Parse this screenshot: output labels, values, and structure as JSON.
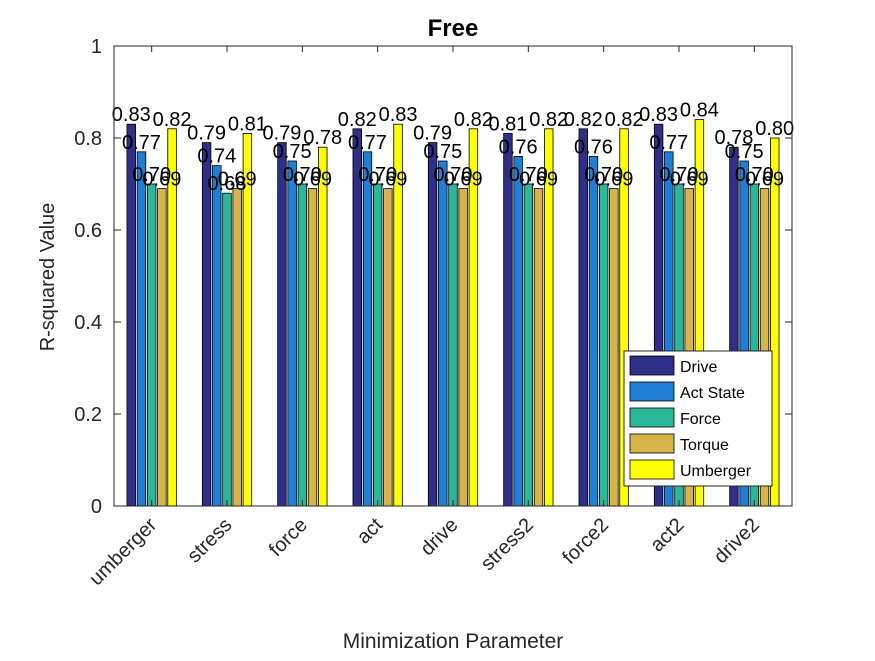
{
  "chart_data": {
    "type": "bar",
    "title": "Free",
    "xlabel": "Minimization Parameter",
    "ylabel": "R-squared Value",
    "ylim": [
      0,
      1
    ],
    "yticks": [
      0,
      0.2,
      0.4,
      0.6,
      0.8,
      1
    ],
    "ytick_labels": [
      "0",
      "0.2",
      "0.4",
      "0.6",
      "0.8",
      "1"
    ],
    "categories": [
      "umberger",
      "stress",
      "force",
      "act",
      "drive",
      "stress2",
      "force2",
      "act2",
      "drive2"
    ],
    "series": [
      {
        "name": "Drive",
        "color": "#2f2f8a",
        "values": [
          0.83,
          0.79,
          0.79,
          0.82,
          0.79,
          0.81,
          0.82,
          0.83,
          0.78
        ],
        "labels": [
          "0.83",
          "0.79",
          "0.79",
          "0.82",
          "0.79",
          "0.81",
          "0.82",
          "0.83",
          "0.78"
        ]
      },
      {
        "name": "Act State",
        "color": "#1f7fd6",
        "values": [
          0.77,
          0.74,
          0.75,
          0.77,
          0.75,
          0.76,
          0.76,
          0.77,
          0.75
        ],
        "labels": [
          "0.77",
          "0.74",
          "0.75",
          "0.77",
          "0.75",
          "0.76",
          "0.76",
          "0.77",
          "0.75"
        ]
      },
      {
        "name": "Force",
        "color": "#2bb89a",
        "values": [
          0.7,
          0.68,
          0.7,
          0.7,
          0.7,
          0.7,
          0.7,
          0.7,
          0.7
        ],
        "labels": [
          "0.70",
          "0.68",
          "0.70",
          "0.70",
          "0.70",
          "0.70",
          "0.70",
          "0.70",
          "0.70"
        ]
      },
      {
        "name": "Torque",
        "color": "#d6b44a",
        "values": [
          0.69,
          0.69,
          0.69,
          0.69,
          0.69,
          0.69,
          0.69,
          0.69,
          0.69
        ],
        "labels": [
          "0.69",
          "0.69",
          "0.69",
          "0.69",
          "0.69",
          "0.69",
          "0.69",
          "0.69",
          "0.69"
        ]
      },
      {
        "name": "Umberger",
        "color": "#ffff00",
        "values": [
          0.82,
          0.81,
          0.78,
          0.83,
          0.82,
          0.82,
          0.82,
          0.84,
          0.8
        ],
        "labels": [
          "0.82",
          "0.81",
          "0.78",
          "0.83",
          "0.82",
          "0.82",
          "0.82",
          "0.84",
          "0.80"
        ]
      }
    ],
    "legend_position": "bottom-right",
    "grid": false
  }
}
